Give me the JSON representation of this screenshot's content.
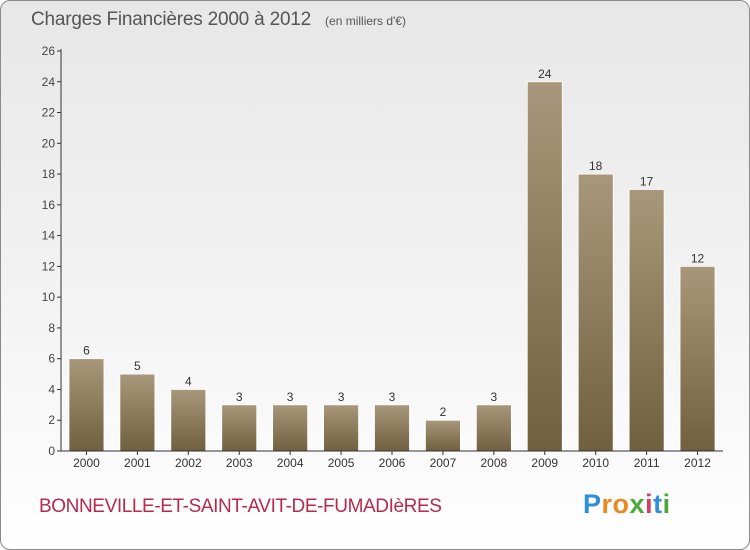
{
  "header": {
    "title": "Charges Financières 2000 à 2012",
    "unit": "(en milliers d'€)"
  },
  "footer": {
    "commune": "BONNEVILLE-ET-SAINT-AVIT-DE-FUMADIèRES",
    "logo_text": "Proxiti"
  },
  "colors": {
    "bar_top": "#a8977a",
    "bar_bottom": "#70603f",
    "commune_text": "#b52a4e",
    "axis": "#333333"
  },
  "chart_data": {
    "type": "bar",
    "title": "Charges Financières 2000 à 2012",
    "subtitle": "(en milliers d'€)",
    "xlabel": "",
    "ylabel": "",
    "categories": [
      "2000",
      "2001",
      "2002",
      "2003",
      "2004",
      "2005",
      "2006",
      "2007",
      "2008",
      "2009",
      "2010",
      "2011",
      "2012"
    ],
    "values": [
      6,
      5,
      4,
      3,
      3,
      3,
      3,
      2,
      3,
      24,
      18,
      17,
      12
    ],
    "data_labels": [
      "6",
      "5",
      "4",
      "3",
      "3",
      "3",
      "3",
      "2",
      "3",
      "24",
      "18",
      "17",
      "12"
    ],
    "ylim": [
      0,
      26
    ],
    "yticks": [
      0,
      2,
      4,
      6,
      8,
      10,
      12,
      14,
      16,
      18,
      20,
      22,
      24,
      26
    ],
    "ytick_labels": [
      "0",
      "2",
      "4",
      "6",
      "8",
      "10",
      "12",
      "14",
      "16",
      "18",
      "20",
      "22",
      "24",
      "26"
    ],
    "grid": false,
    "legend": "none"
  }
}
